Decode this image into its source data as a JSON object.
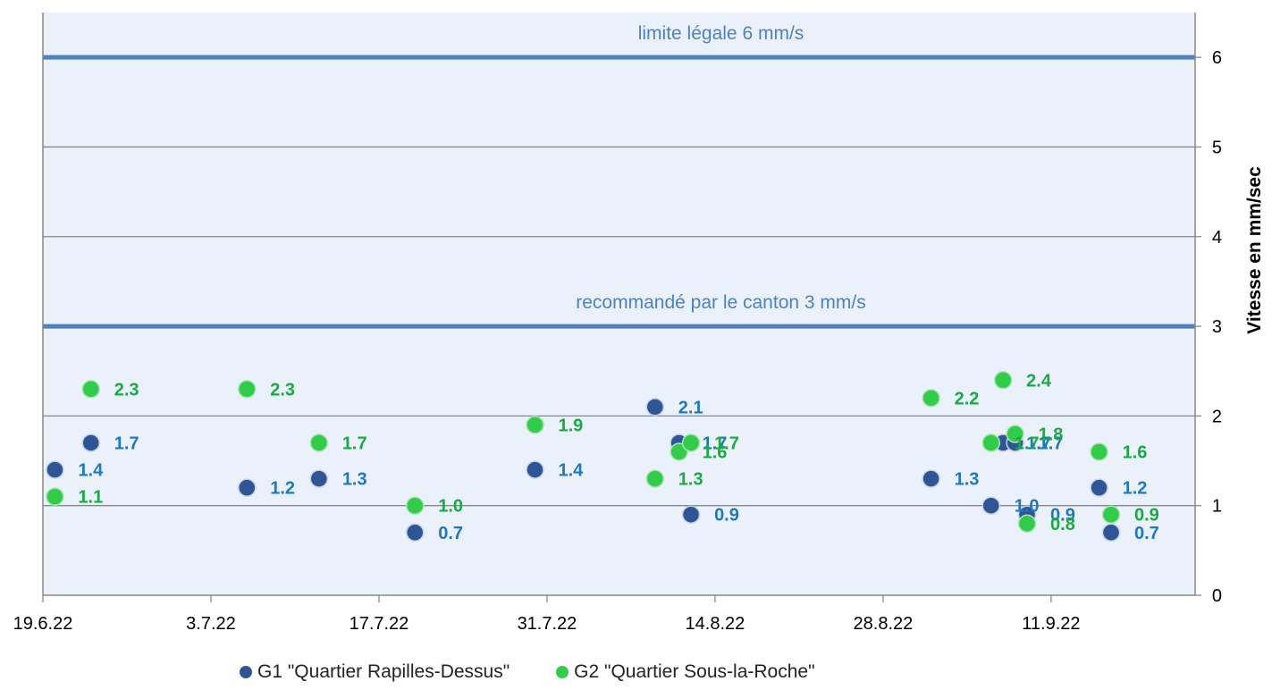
{
  "chart_data": {
    "type": "scatter",
    "title": "",
    "xlabel": "",
    "ylabel": "Vitesse en mm/sec",
    "x_ticks": [
      "19.6.22",
      "3.7.22",
      "17.7.22",
      "31.7.22",
      "14.8.22",
      "28.8.22",
      "11.9.22"
    ],
    "x_range": [
      "2022-06-19",
      "2022-09-23"
    ],
    "y_ticks": [
      "0",
      "1",
      "2",
      "3",
      "4",
      "5",
      "6"
    ],
    "ylim": [
      0,
      6.5
    ],
    "y_axis_side": "right",
    "grid": true,
    "legend_position": "bottom",
    "plot_background": "#eaf1fa",
    "reference_lines": [
      {
        "label": "limite légale 6 mm/s",
        "y": 6,
        "color": "#4f81bd"
      },
      {
        "label": "recommandé par le canton 3 mm/s",
        "y": 3,
        "color": "#4f81bd"
      }
    ],
    "series": [
      {
        "name": "G1 \"Quartier Rapilles-Dessus\"",
        "color": "#2f5597",
        "label_color": "#1f78c1",
        "points": [
          {
            "x": "2022-06-20",
            "y": 1.4,
            "label": "1.4"
          },
          {
            "x": "2022-06-23",
            "y": 1.7,
            "label": "1.7"
          },
          {
            "x": "2022-07-06",
            "y": 1.2,
            "label": "1.2"
          },
          {
            "x": "2022-07-12",
            "y": 1.3,
            "label": "1.3"
          },
          {
            "x": "2022-07-20",
            "y": 0.7,
            "label": "0.7"
          },
          {
            "x": "2022-07-30",
            "y": 1.4,
            "label": "1.4"
          },
          {
            "x": "2022-08-09",
            "y": 2.1,
            "label": "2.1"
          },
          {
            "x": "2022-08-11",
            "y": 1.7,
            "label": "1.7"
          },
          {
            "x": "2022-08-12",
            "y": 0.9,
            "label": "0.9"
          },
          {
            "x": "2022-09-01",
            "y": 1.3,
            "label": "1.3"
          },
          {
            "x": "2022-09-06",
            "y": 1.0,
            "label": "1.0"
          },
          {
            "x": "2022-09-07",
            "y": 1.7,
            "label": "1.7"
          },
          {
            "x": "2022-09-08",
            "y": 1.7,
            "label": "1.7"
          },
          {
            "x": "2022-09-09",
            "y": 0.9,
            "label": "0.9"
          },
          {
            "x": "2022-09-15",
            "y": 1.2,
            "label": "1.2"
          },
          {
            "x": "2022-09-16",
            "y": 0.7,
            "label": "0.7"
          }
        ]
      },
      {
        "name": "G2 \"Quartier Sous-la-Roche\"",
        "color": "#33cc4a",
        "label_color": "#1aaa44",
        "points": [
          {
            "x": "2022-06-20",
            "y": 1.1,
            "label": "1.1"
          },
          {
            "x": "2022-06-23",
            "y": 2.3,
            "label": "2.3"
          },
          {
            "x": "2022-07-06",
            "y": 2.3,
            "label": "2.3"
          },
          {
            "x": "2022-07-12",
            "y": 1.7,
            "label": "1.7"
          },
          {
            "x": "2022-07-20",
            "y": 1.0,
            "label": "1.0"
          },
          {
            "x": "2022-07-30",
            "y": 1.9,
            "label": "1.9"
          },
          {
            "x": "2022-08-09",
            "y": 1.3,
            "label": "1.3"
          },
          {
            "x": "2022-08-11",
            "y": 1.6,
            "label": "1.6"
          },
          {
            "x": "2022-08-12",
            "y": 1.7,
            "label": "1.7"
          },
          {
            "x": "2022-09-01",
            "y": 2.2,
            "label": "2.2"
          },
          {
            "x": "2022-09-06",
            "y": 1.7,
            "label": "1.7"
          },
          {
            "x": "2022-09-07",
            "y": 2.4,
            "label": "2.4"
          },
          {
            "x": "2022-09-08",
            "y": 1.8,
            "label": "1.8"
          },
          {
            "x": "2022-09-09",
            "y": 0.8,
            "label": "0.8"
          },
          {
            "x": "2022-09-15",
            "y": 1.6,
            "label": "1.6"
          },
          {
            "x": "2022-09-16",
            "y": 0.9,
            "label": "0.9"
          }
        ]
      }
    ]
  }
}
